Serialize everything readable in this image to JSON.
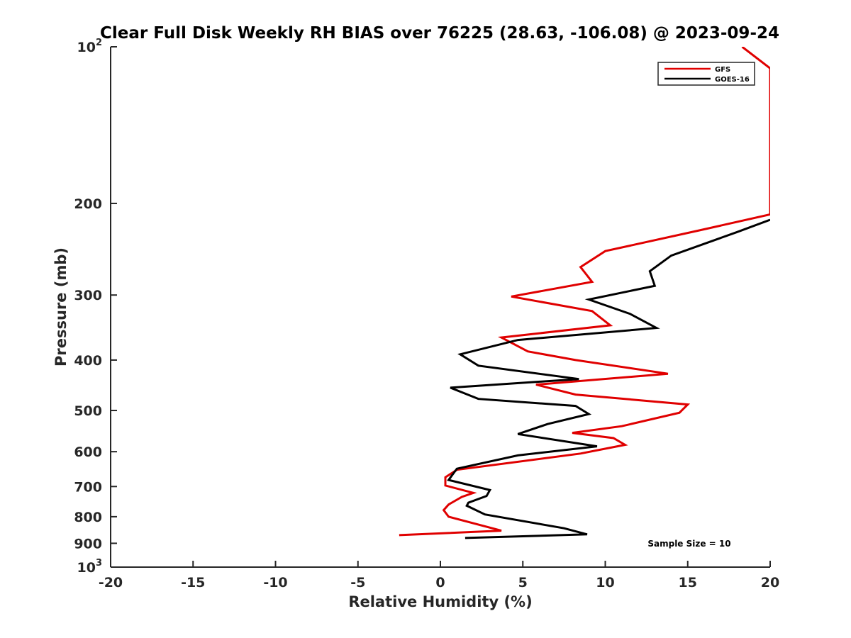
{
  "chart_data": {
    "type": "line",
    "title": "Clear Full Disk Weekly RH BIAS over 76225 (28.63, -106.08) @ 2023-09-24",
    "xlabel": "Relative Humidity (%)",
    "ylabel": "Pressure (mb)",
    "xlim": [
      -20,
      20
    ],
    "ylim": [
      100,
      1000
    ],
    "yscale": "log",
    "y_reversed": true,
    "grid": false,
    "legend_position": "top-right",
    "x_ticks": [
      "-20",
      "-15",
      "-10",
      "-5",
      "0",
      "5",
      "10",
      "15",
      "20"
    ],
    "y_ticks": [
      {
        "value": 100,
        "base": "10",
        "exp": "2"
      },
      {
        "value": 200,
        "label": "200"
      },
      {
        "value": 300,
        "label": "300"
      },
      {
        "value": 400,
        "label": "400"
      },
      {
        "value": 500,
        "label": "500"
      },
      {
        "value": 600,
        "label": "600"
      },
      {
        "value": 700,
        "label": "700"
      },
      {
        "value": 800,
        "label": "800"
      },
      {
        "value": 900,
        "label": "900"
      },
      {
        "value": 1000,
        "base": "10",
        "exp": "3"
      }
    ],
    "annotation": "Sample Size = 10",
    "series": [
      {
        "name": "GFS",
        "color": "#e00000",
        "points": [
          [
            18.3,
            100
          ],
          [
            20.0,
            110
          ],
          [
            20.0,
            210
          ],
          [
            15.8,
            225
          ],
          [
            10.0,
            247
          ],
          [
            8.5,
            265
          ],
          [
            9.2,
            283
          ],
          [
            4.3,
            302
          ],
          [
            9.2,
            322
          ],
          [
            10.3,
            343
          ],
          [
            3.7,
            362
          ],
          [
            5.3,
            385
          ],
          [
            8.2,
            400
          ],
          [
            13.8,
            425
          ],
          [
            5.8,
            446
          ],
          [
            8.2,
            466
          ],
          [
            15.0,
            487
          ],
          [
            14.5,
            505
          ],
          [
            11.0,
            536
          ],
          [
            8.0,
            552
          ],
          [
            10.5,
            565
          ],
          [
            11.2,
            582
          ],
          [
            8.5,
            605
          ],
          [
            1.0,
            650
          ],
          [
            0.3,
            672
          ],
          [
            0.3,
            697
          ],
          [
            2.0,
            720
          ],
          [
            1.3,
            733
          ],
          [
            0.5,
            758
          ],
          [
            0.2,
            777
          ],
          [
            0.5,
            800
          ],
          [
            3.7,
            851
          ],
          [
            -2.5,
            868
          ]
        ]
      },
      {
        "name": "GOES-16",
        "color": "#000000",
        "points": [
          [
            20.0,
            215
          ],
          [
            18.0,
            227
          ],
          [
            14.0,
            252
          ],
          [
            12.7,
            270
          ],
          [
            13.0,
            288
          ],
          [
            9.0,
            306
          ],
          [
            11.5,
            326
          ],
          [
            13.1,
            347
          ],
          [
            4.7,
            366
          ],
          [
            1.2,
            390
          ],
          [
            2.3,
            410
          ],
          [
            8.4,
            435
          ],
          [
            0.6,
            452
          ],
          [
            2.3,
            475
          ],
          [
            8.2,
            490
          ],
          [
            9.0,
            508
          ],
          [
            6.5,
            531
          ],
          [
            4.7,
            555
          ],
          [
            9.5,
            586
          ],
          [
            4.7,
            610
          ],
          [
            1.0,
            647
          ],
          [
            0.8,
            660
          ],
          [
            0.5,
            680
          ],
          [
            3.0,
            711
          ],
          [
            2.8,
            730
          ],
          [
            1.7,
            752
          ],
          [
            1.6,
            762
          ],
          [
            2.7,
            792
          ],
          [
            7.5,
            842
          ],
          [
            8.9,
            865
          ],
          [
            1.5,
            879
          ]
        ]
      }
    ]
  }
}
